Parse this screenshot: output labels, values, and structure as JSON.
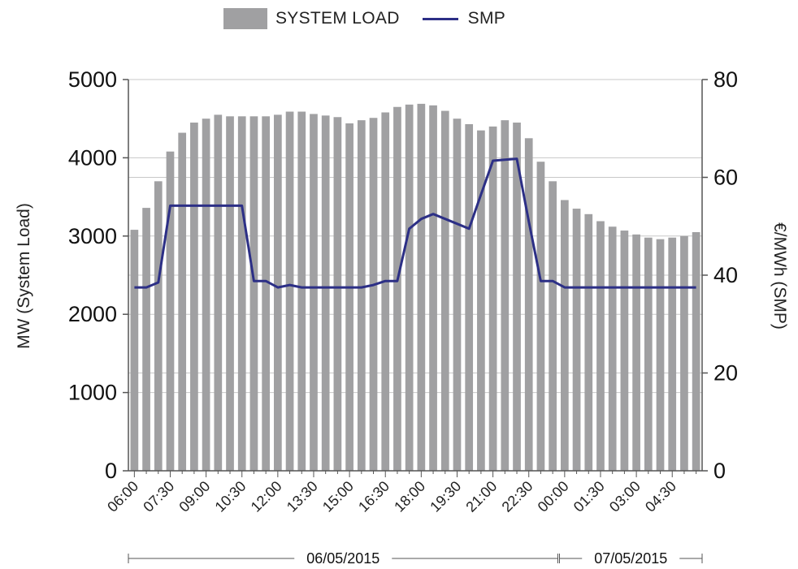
{
  "legend": {
    "bar_label": "SYSTEM LOAD",
    "line_label": "SMP"
  },
  "colors": {
    "bars": "#a0a0a2",
    "line": "#2c2f86",
    "grid": "#c8c8c8",
    "axis": "#555555"
  },
  "chart_data": {
    "type": "bar",
    "title": "",
    "ylabel": "MW (System Load)",
    "y2label": "€/MWh (SMP)",
    "ylim": [
      0,
      5000
    ],
    "y2lim": [
      0,
      80
    ],
    "yticks": [
      0,
      1000,
      2000,
      3000,
      4000,
      5000
    ],
    "y2ticks": [
      0,
      20,
      40,
      60,
      80
    ],
    "xticks_labels": [
      "06:00",
      "07:30",
      "09:00",
      "10:30",
      "12:00",
      "13:30",
      "15:00",
      "16:30",
      "18:00",
      "19:30",
      "21:00",
      "22:30",
      "00:00",
      "01:30",
      "03:00",
      "04:30"
    ],
    "date_groups": [
      {
        "label": "06/05/2015",
        "start_index": 0,
        "end_index": 35
      },
      {
        "label": "07/05/2015",
        "start_index": 36,
        "end_index": 47
      }
    ],
    "legend_position": "top",
    "grid": true,
    "categories": [
      "06:00",
      "06:30",
      "07:00",
      "07:30",
      "08:00",
      "08:30",
      "09:00",
      "09:30",
      "10:00",
      "10:30",
      "11:00",
      "11:30",
      "12:00",
      "12:30",
      "13:00",
      "13:30",
      "14:00",
      "14:30",
      "15:00",
      "15:30",
      "16:00",
      "16:30",
      "17:00",
      "17:30",
      "18:00",
      "18:30",
      "19:00",
      "19:30",
      "20:00",
      "20:30",
      "21:00",
      "21:30",
      "22:00",
      "22:30",
      "23:00",
      "23:30",
      "00:00",
      "00:30",
      "01:00",
      "01:30",
      "02:00",
      "02:30",
      "03:00",
      "03:30",
      "04:00",
      "04:30",
      "05:00",
      "05:30"
    ],
    "series": [
      {
        "name": "SYSTEM LOAD",
        "type": "bar",
        "axis": "left",
        "values": [
          3080,
          3360,
          3700,
          4080,
          4320,
          4450,
          4500,
          4550,
          4530,
          4530,
          4530,
          4530,
          4550,
          4590,
          4590,
          4560,
          4540,
          4520,
          4440,
          4480,
          4510,
          4580,
          4650,
          4680,
          4690,
          4670,
          4600,
          4500,
          4430,
          4350,
          4400,
          4480,
          4450,
          4250,
          3950,
          3700,
          3460,
          3350,
          3280,
          3190,
          3120,
          3070,
          3020,
          2980,
          2960,
          2980,
          3000,
          3050
        ]
      },
      {
        "name": "SMP",
        "type": "line",
        "axis": "right",
        "values": [
          37.5,
          37.5,
          38.5,
          54.2,
          54.2,
          54.2,
          54.2,
          54.2,
          54.2,
          54.2,
          38.8,
          38.8,
          37.5,
          38,
          37.5,
          37.5,
          37.5,
          37.5,
          37.5,
          37.5,
          38,
          38.8,
          38.8,
          49.5,
          51.5,
          52.5,
          51.5,
          50.5,
          49.5,
          56.5,
          63.4,
          63.6,
          63.8,
          51,
          38.8,
          38.8,
          37.5,
          37.5,
          37.5,
          37.5,
          37.5,
          37.5,
          37.5,
          37.5,
          37.5,
          37.5,
          37.5,
          37.5
        ]
      }
    ]
  }
}
